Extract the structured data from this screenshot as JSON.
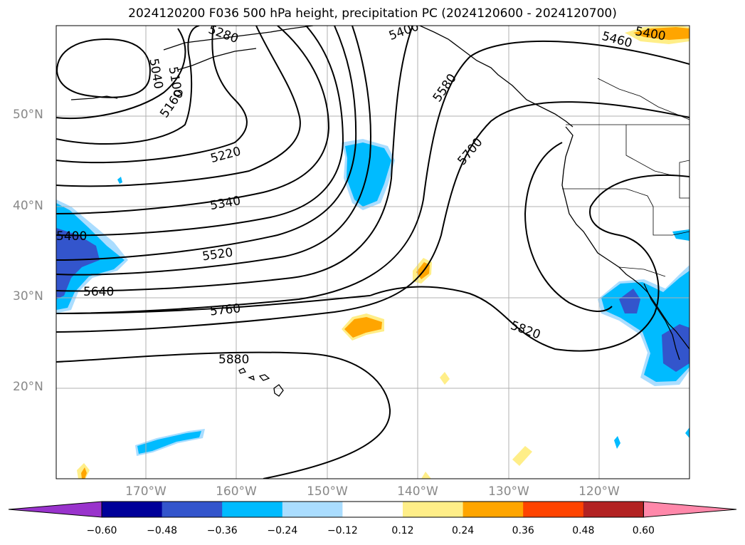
{
  "title": "2024120200 F036 500 hPa height, precipitation PC (2024120600 - 2024120700)",
  "lat_labels": [
    "50°N",
    "40°N",
    "30°N",
    "20°N"
  ],
  "lon_labels": [
    "170°W",
    "160°W",
    "150°W",
    "140°W",
    "130°W",
    "120°W"
  ],
  "contour_labels": [
    "5280",
    "5400",
    "5040",
    "5100",
    "5160",
    "5220",
    "5340",
    "5400",
    "5520",
    "5640",
    "5760",
    "5880",
    "5460",
    "5580",
    "5700",
    "5820",
    "5400"
  ],
  "colorbar": {
    "ticks": [
      "−0.60",
      "−0.48",
      "−0.36",
      "−0.24",
      "−0.12",
      "0.12",
      "0.24",
      "0.36",
      "0.48",
      "0.60"
    ],
    "colors": [
      "#9933cc",
      "#000099",
      "#3355cc",
      "#00bbff",
      "#aaddff",
      "#ffffff",
      "#ffee88",
      "#ffa500",
      "#ff4400",
      "#b22222",
      "#ff88aa"
    ]
  }
}
